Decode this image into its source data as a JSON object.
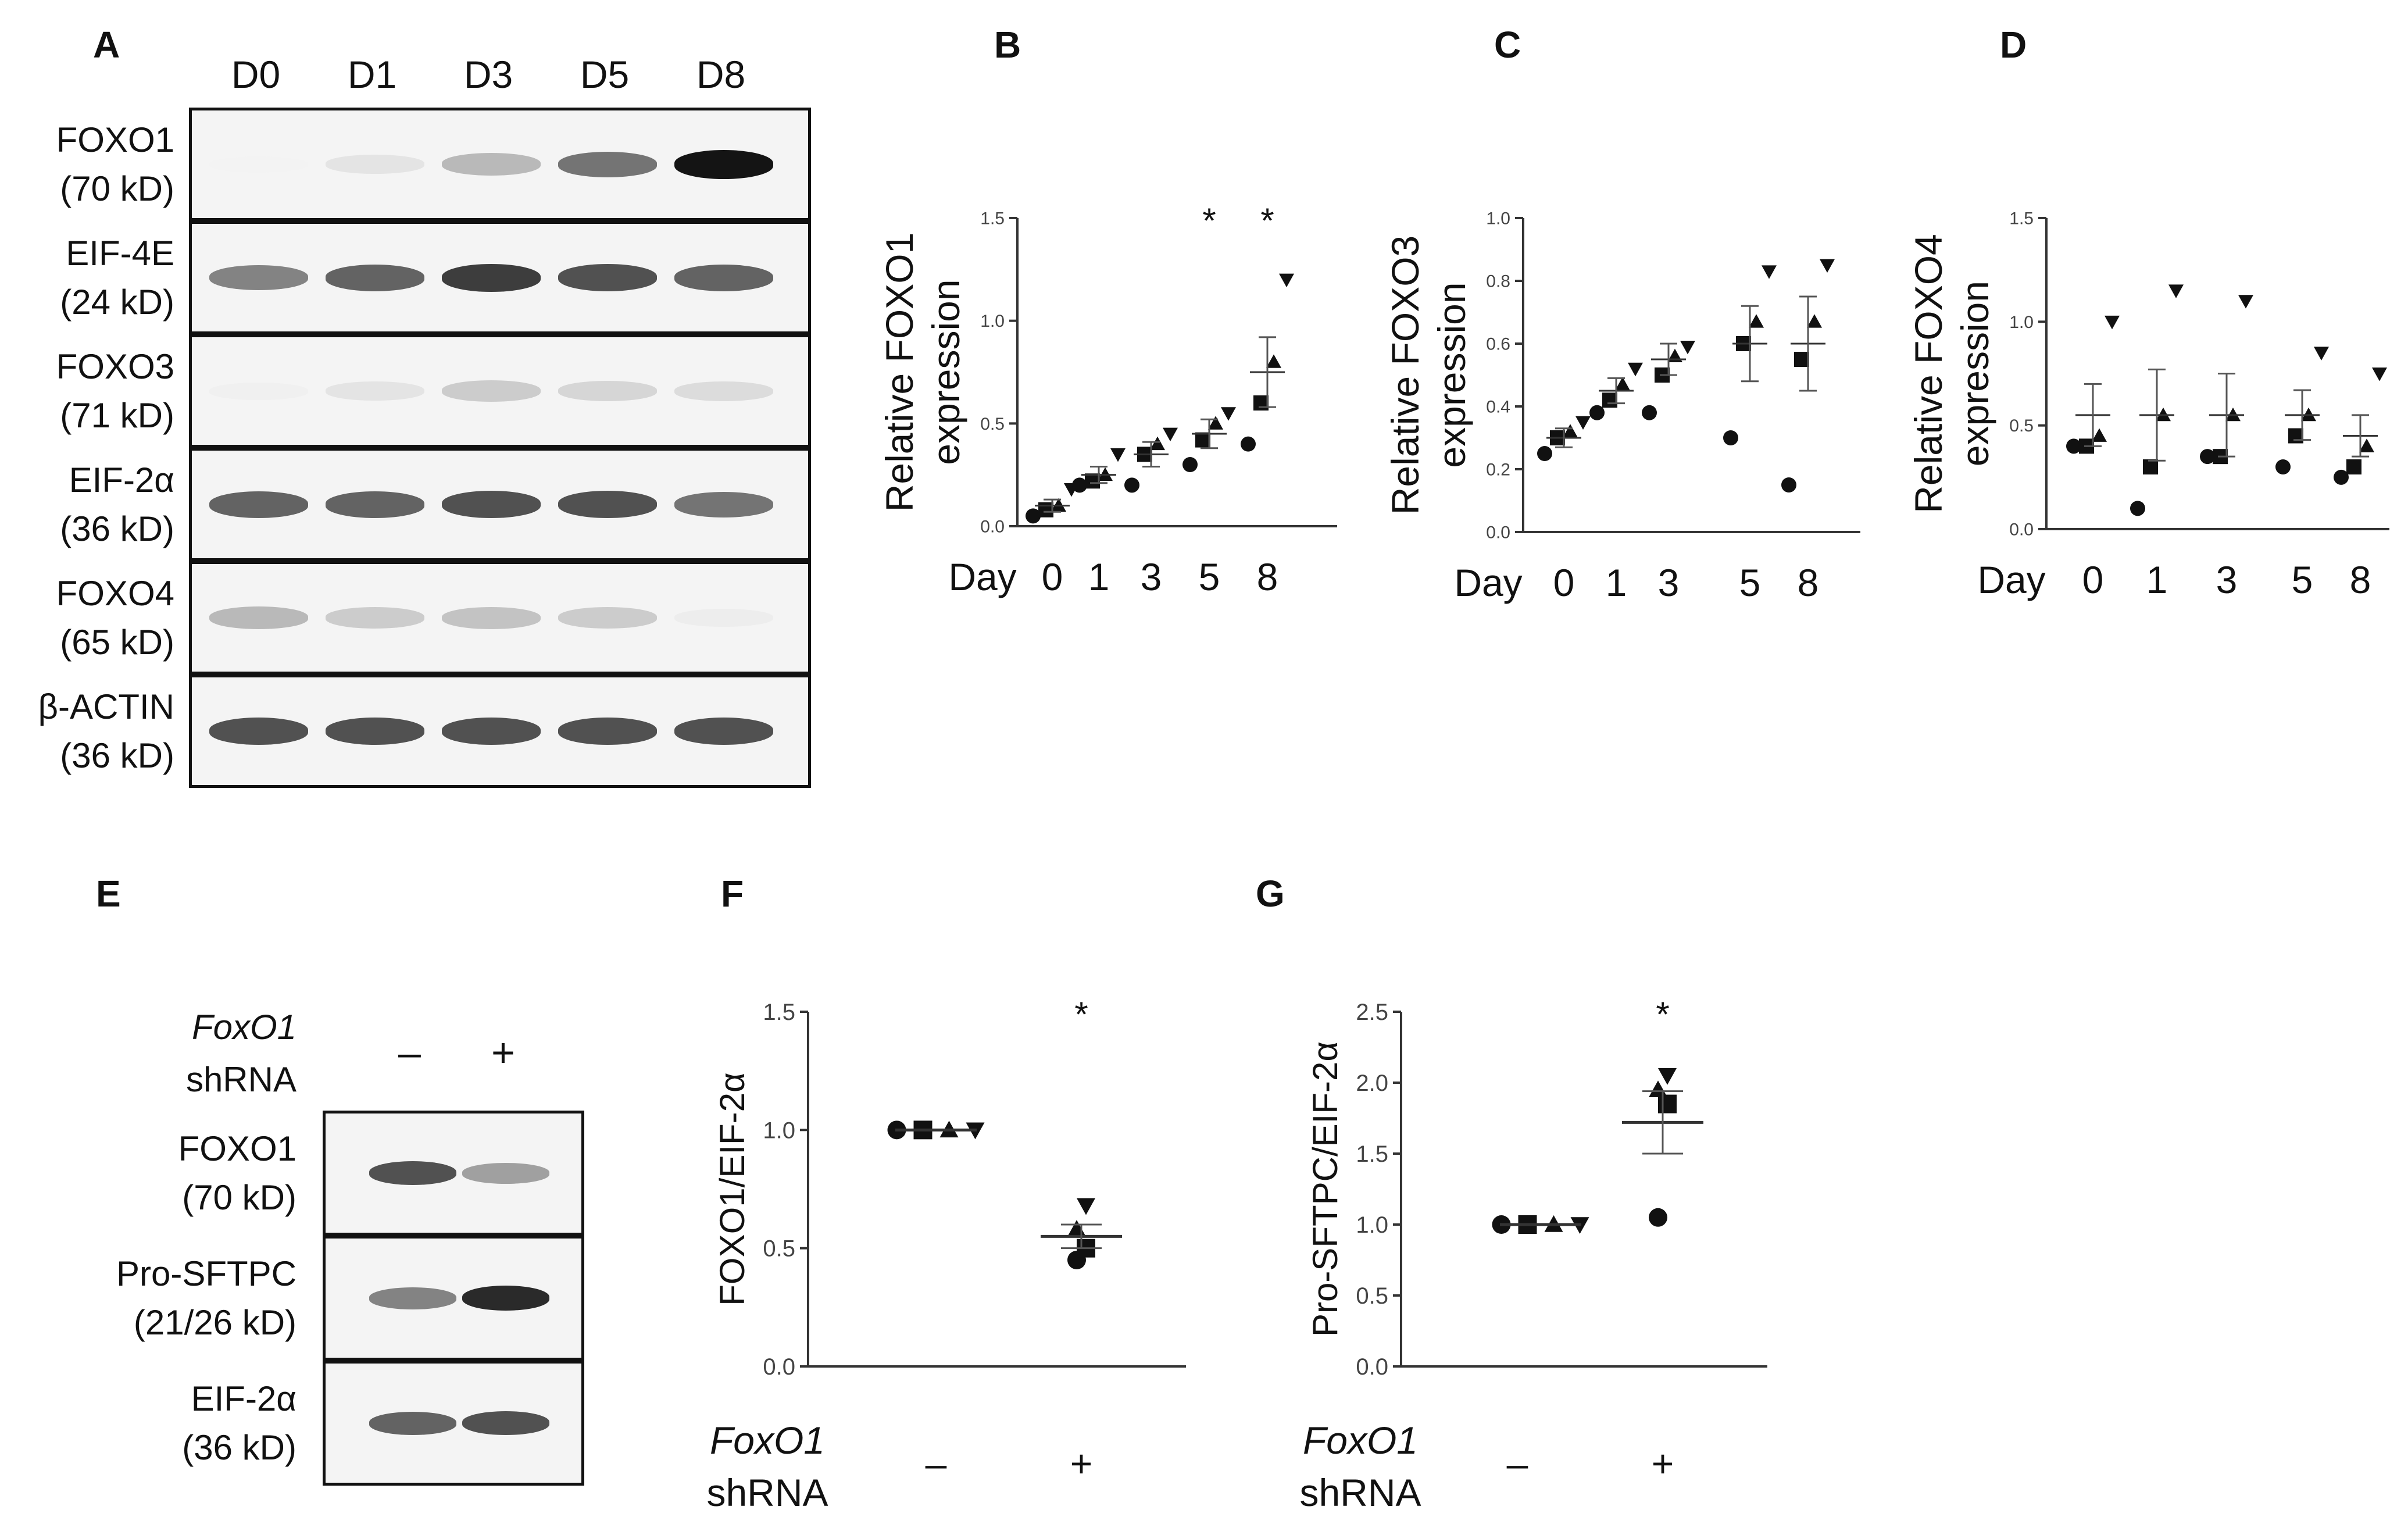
{
  "panels": {
    "A": "A",
    "B": "B",
    "C": "C",
    "D": "D",
    "E": "E",
    "F": "F",
    "G": "G"
  },
  "blotA": {
    "lanes": [
      "D0",
      "D1",
      "D3",
      "D5",
      "D8"
    ],
    "rows": [
      {
        "name": "FOXO1",
        "size": "(70 kD)",
        "intensity": [
          0.0,
          0.25,
          0.5,
          0.75,
          1.0
        ]
      },
      {
        "name": "EIF-4E",
        "size": "(24 kD)",
        "intensity": [
          0.7,
          0.8,
          0.9,
          0.85,
          0.8
        ]
      },
      {
        "name": "FOXO3",
        "size": "(71 kD)",
        "intensity": [
          0.1,
          0.25,
          0.4,
          0.35,
          0.3
        ]
      },
      {
        "name": "EIF-2α",
        "size": "(36 kD)",
        "intensity": [
          0.8,
          0.8,
          0.85,
          0.85,
          0.75
        ]
      },
      {
        "name": "FOXO4",
        "size": "(65 kD)",
        "intensity": [
          0.5,
          0.4,
          0.45,
          0.4,
          0.15
        ]
      },
      {
        "name": "β-ACTIN",
        "size": "(36 kD)",
        "intensity": [
          0.85,
          0.85,
          0.85,
          0.85,
          0.85
        ]
      }
    ]
  },
  "blotE": {
    "treatment_italic": "FoxO1",
    "treatment_label": "shRNA",
    "signs": [
      "–",
      "+"
    ],
    "rows": [
      {
        "name": "FOXO1",
        "size": "(70 kD)",
        "intensity": [
          0.85,
          0.6
        ]
      },
      {
        "name": "Pro-SFTPC",
        "size": "(21/26 kD)",
        "intensity": [
          0.7,
          0.95
        ]
      },
      {
        "name": "EIF-2α",
        "size": "(36 kD)",
        "intensity": [
          0.8,
          0.85
        ]
      }
    ]
  },
  "chart_data": [
    {
      "id": "B",
      "type": "scatter",
      "ylabel_line1": "Relative FOXO1",
      "ylabel_line2": "expression",
      "xlabel": "Day",
      "categories": [
        "0",
        "1",
        "3",
        "5",
        "8"
      ],
      "ylim": [
        0,
        1.5
      ],
      "yticks": [
        "0.0",
        "0.5",
        "1.0",
        "1.5"
      ],
      "points": [
        [
          0.05,
          0.08,
          0.1,
          0.18
        ],
        [
          0.2,
          0.22,
          0.25,
          0.35
        ],
        [
          0.2,
          0.35,
          0.4,
          0.45
        ],
        [
          0.3,
          0.42,
          0.5,
          0.55
        ],
        [
          0.4,
          0.6,
          0.8,
          1.2
        ]
      ],
      "means": [
        0.1,
        0.25,
        0.35,
        0.45,
        0.75
      ],
      "errors": [
        0.03,
        0.04,
        0.06,
        0.07,
        0.17
      ],
      "significance": [
        "",
        "",
        "",
        "*",
        "*"
      ]
    },
    {
      "id": "C",
      "type": "scatter",
      "ylabel_line1": "Relative FOXO3",
      "ylabel_line2": "expression",
      "xlabel": "Day",
      "categories": [
        "0",
        "1",
        "3",
        "5",
        "8"
      ],
      "ylim": [
        0,
        1.0
      ],
      "yticks": [
        "0.0",
        "0.2",
        "0.4",
        "0.6",
        "0.8",
        "1.0"
      ],
      "points": [
        [
          0.25,
          0.3,
          0.32,
          0.35
        ],
        [
          0.38,
          0.42,
          0.47,
          0.52
        ],
        [
          0.38,
          0.5,
          0.56,
          0.59
        ],
        [
          0.3,
          0.6,
          0.67,
          0.83
        ],
        [
          0.15,
          0.55,
          0.67,
          0.85
        ]
      ],
      "means": [
        0.3,
        0.45,
        0.55,
        0.6,
        0.6
      ],
      "errors": [
        0.03,
        0.04,
        0.05,
        0.12,
        0.15
      ],
      "significance": [
        "",
        "",
        "",
        "",
        ""
      ]
    },
    {
      "id": "D",
      "type": "scatter",
      "ylabel_line1": "Relative FOXO4",
      "ylabel_line2": "expression",
      "xlabel": "Day",
      "categories": [
        "0",
        "1",
        "3",
        "5",
        "8"
      ],
      "ylim": [
        0,
        1.5
      ],
      "yticks": [
        "0.0",
        "0.5",
        "1.0",
        "1.5"
      ],
      "points": [
        [
          0.4,
          0.4,
          0.45,
          1.0
        ],
        [
          0.1,
          0.3,
          0.55,
          1.15
        ],
        [
          0.35,
          0.35,
          0.55,
          1.1
        ],
        [
          0.3,
          0.45,
          0.55,
          0.85
        ],
        [
          0.25,
          0.3,
          0.4,
          0.75
        ]
      ],
      "means": [
        0.55,
        0.55,
        0.55,
        0.55,
        0.45
      ],
      "errors": [
        0.15,
        0.22,
        0.2,
        0.12,
        0.1
      ],
      "significance": [
        "",
        "",
        "",
        "",
        ""
      ]
    },
    {
      "id": "F",
      "type": "scatter",
      "ylabel": "FOXO1/EIF-2α",
      "xlabel_italic": "FoxO1",
      "xlabel": "shRNA",
      "categories": [
        "–",
        "+"
      ],
      "ylim": [
        0,
        1.5
      ],
      "yticks": [
        "0.0",
        "0.5",
        "1.0",
        "1.5"
      ],
      "points": [
        [
          1.0,
          1.0,
          1.0,
          1.0
        ],
        [
          0.45,
          0.5,
          0.58,
          0.68
        ]
      ],
      "means": [
        1.0,
        0.55
      ],
      "errors": [
        0.0,
        0.05
      ],
      "significance": [
        "",
        "*"
      ]
    },
    {
      "id": "G",
      "type": "scatter",
      "ylabel": "Pro-SFTPC/EIF-2α",
      "xlabel_italic": "FoxO1",
      "xlabel": "shRNA",
      "categories": [
        "–",
        "+"
      ],
      "ylim": [
        0,
        2.5
      ],
      "yticks": [
        "0.0",
        "0.5",
        "1.0",
        "1.5",
        "2.0",
        "2.5"
      ],
      "points": [
        [
          1.0,
          1.0,
          1.0,
          1.0
        ],
        [
          1.05,
          1.85,
          1.95,
          2.05
        ]
      ],
      "means": [
        1.0,
        1.72
      ],
      "errors": [
        0.0,
        0.22
      ],
      "significance": [
        "",
        "*"
      ]
    }
  ]
}
